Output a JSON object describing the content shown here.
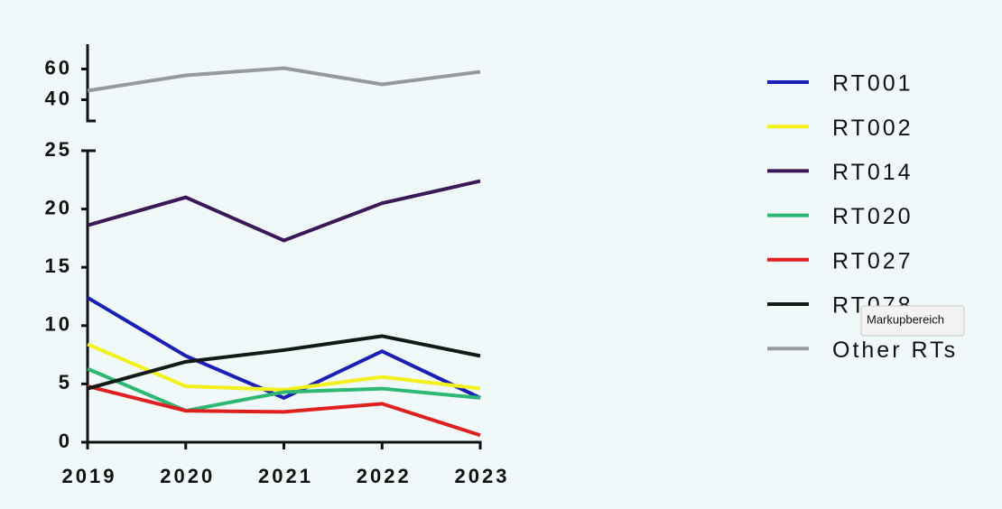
{
  "chart_data": {
    "type": "line",
    "categories": [
      "2019",
      "2020",
      "2021",
      "2022",
      "2023"
    ],
    "series": [
      {
        "name": "RT001",
        "color": "#1a1fb5",
        "values": [
          12.4,
          7.4,
          3.8,
          7.8,
          3.8
        ]
      },
      {
        "name": "RT002",
        "color": "#f2f21a",
        "values": [
          8.4,
          4.8,
          4.5,
          5.6,
          4.6
        ]
      },
      {
        "name": "RT014",
        "color": "#3b1858",
        "values": [
          18.6,
          21.0,
          17.3,
          20.5,
          22.4
        ]
      },
      {
        "name": "RT020",
        "color": "#2db873",
        "values": [
          6.3,
          2.7,
          4.3,
          4.6,
          3.8
        ]
      },
      {
        "name": "RT027",
        "color": "#e02020",
        "values": [
          4.8,
          2.7,
          2.6,
          3.3,
          0.6
        ]
      },
      {
        "name": "RT078",
        "color": "#111a14",
        "values": [
          4.6,
          6.9,
          7.9,
          9.1,
          7.4
        ]
      },
      {
        "name": "Other RTs",
        "color": "#969a9c",
        "axis": "y2",
        "values": [
          45.9,
          55.9,
          60.6,
          50.0,
          58.2
        ]
      }
    ],
    "ylim": [
      0,
      25
    ],
    "yticks": [
      0,
      5,
      10,
      15,
      20,
      25
    ],
    "y2lim": [
      25,
      75
    ],
    "y2ticks": [
      40,
      60
    ],
    "legend": "right",
    "tooltip": "Markupbereich"
  }
}
